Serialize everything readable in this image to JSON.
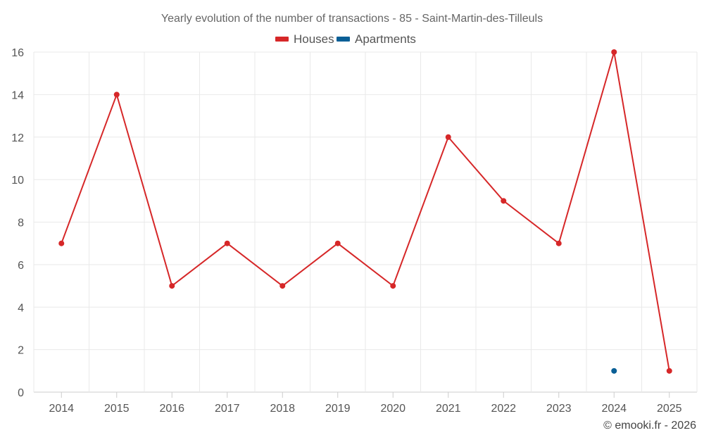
{
  "chart_data": {
    "type": "line",
    "title": "Yearly evolution of the number of transactions - 85 - Saint-Martin-des-Tilleuls",
    "categories": [
      "2014",
      "2015",
      "2016",
      "2017",
      "2018",
      "2019",
      "2020",
      "2021",
      "2022",
      "2023",
      "2024",
      "2025"
    ],
    "series": [
      {
        "name": "Houses",
        "color": "#d62728",
        "values": [
          7,
          14,
          5,
          7,
          5,
          7,
          5,
          12,
          9,
          7,
          16,
          1
        ]
      },
      {
        "name": "Apartments",
        "color": "#0a5f96",
        "values": [
          null,
          null,
          null,
          null,
          null,
          null,
          null,
          null,
          null,
          null,
          1,
          null
        ]
      }
    ],
    "ylim": [
      0,
      16
    ],
    "yticks": [
      "0",
      "2",
      "4",
      "6",
      "8",
      "10",
      "12",
      "14",
      "16"
    ],
    "xlabel": "",
    "ylabel": "",
    "grid": true,
    "legend_position": "top-center"
  },
  "footer": {
    "copyright": "© emooki.fr - 2026"
  }
}
